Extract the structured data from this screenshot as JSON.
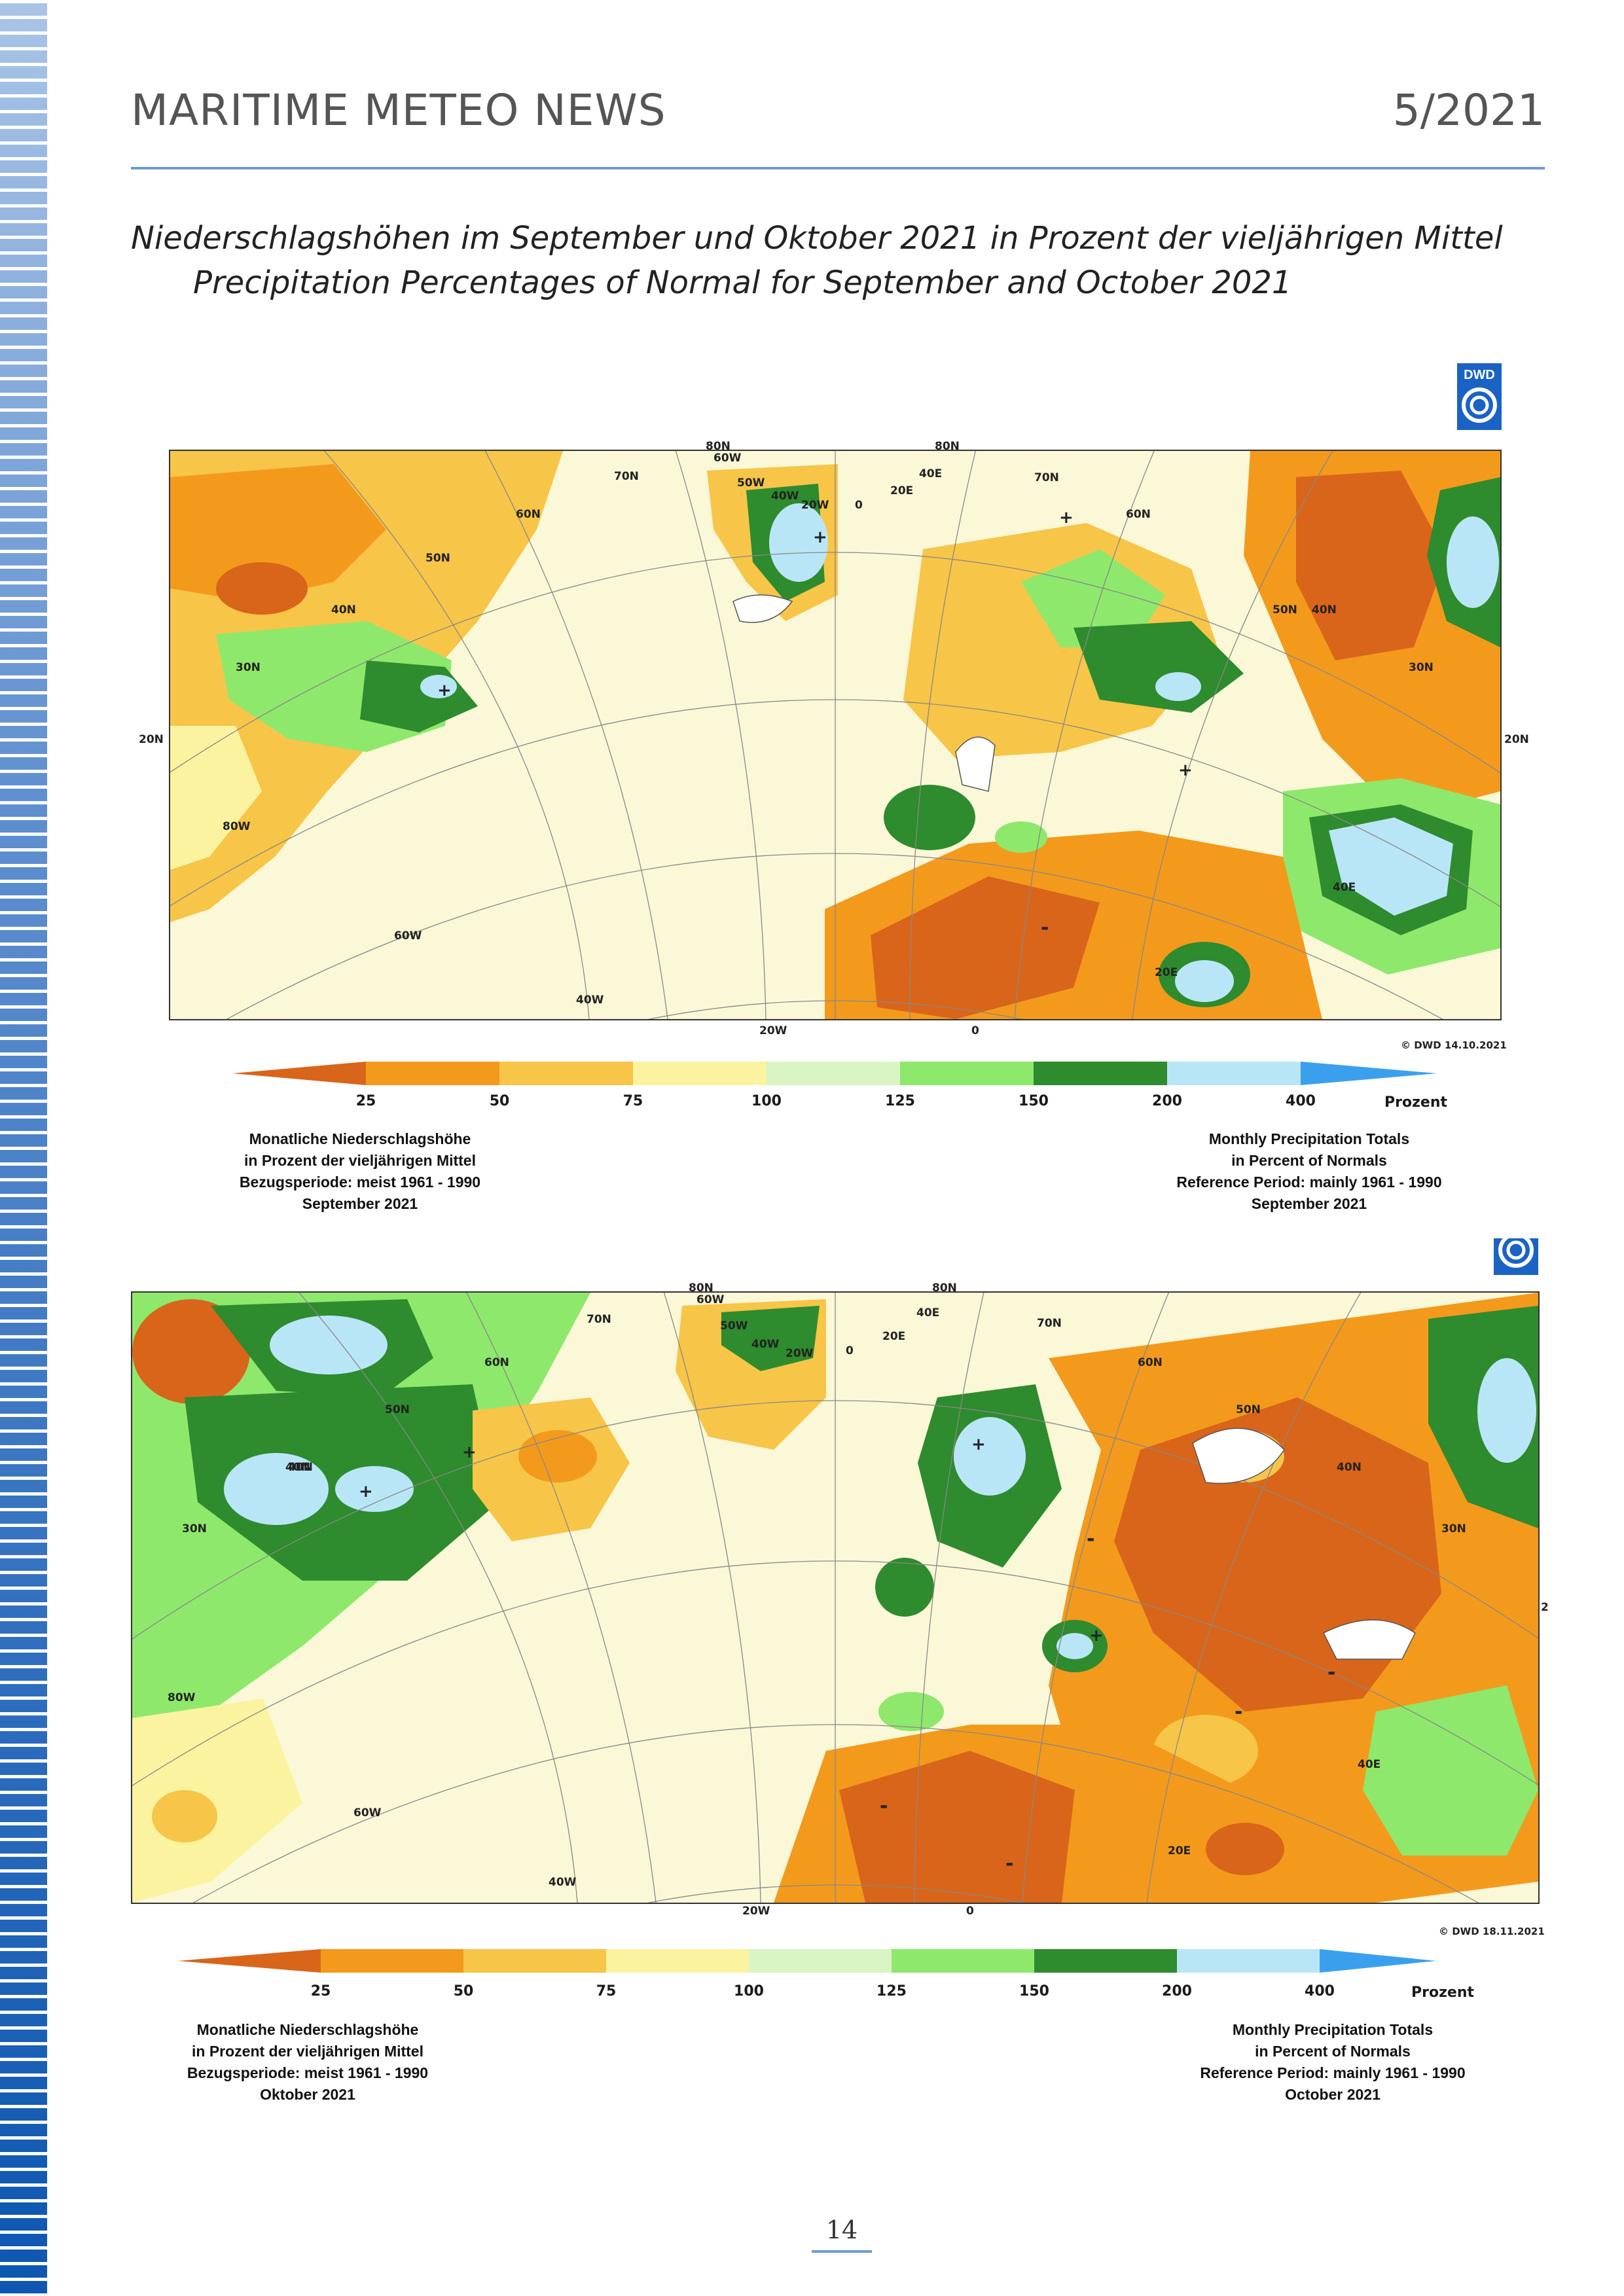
{
  "header": {
    "title": "MARITIME METEO NEWS",
    "issue": "5/2021"
  },
  "subtitle": {
    "line1": "Niederschlagshöhen im September und Oktober 2021 in Prozent der vieljährigen Mittel",
    "line2": "Precipitation Percentages of Normal for September and October 2021"
  },
  "logo": {
    "text": "DWD"
  },
  "maps": [
    {
      "month": "September 2021",
      "copyright": "© DWD 14.10.2021",
      "bottom_labels": [
        "20W",
        "0"
      ],
      "left_labels": [
        "20N",
        "80W",
        "60W",
        "40W"
      ],
      "right_labels": [
        "20N"
      ],
      "grid_labels": [
        "80N",
        "80N",
        "60W",
        "70N",
        "60N",
        "50N",
        "40N",
        "30N",
        "50W",
        "40W",
        "20W",
        "0",
        "20E",
        "40E",
        "70N",
        "60N",
        "50N",
        "40N",
        "30N",
        "40E",
        "20E"
      ],
      "signs": [
        "+",
        "+",
        "+",
        "+",
        "-"
      ]
    },
    {
      "month": "Oktober 2021",
      "copyright": "© DWD 18.11.2021",
      "bottom_labels": [
        "20W",
        "0"
      ],
      "left_labels": [
        "80W",
        "60W",
        "40W",
        "30N",
        "40N"
      ],
      "right_labels": [
        "2"
      ],
      "grid_labels": [
        "80N",
        "80N",
        "60W",
        "70N",
        "60N",
        "50N",
        "40N",
        "50W",
        "40W",
        "20W",
        "0",
        "20E",
        "40E",
        "70N",
        "60N",
        "50N",
        "40N",
        "30N",
        "40E",
        "20E"
      ],
      "signs": [
        "+",
        "+",
        "+",
        "+",
        "-",
        "-",
        "-",
        "-",
        "-"
      ]
    }
  ],
  "legend": {
    "ticks": [
      "25",
      "50",
      "75",
      "100",
      "125",
      "150",
      "200",
      "400"
    ],
    "unit": "Prozent",
    "colors": [
      "#d9651a",
      "#f39a1c",
      "#f7c548",
      "#fbf3a0",
      "#d9f5c4",
      "#8ee86c",
      "#2e8b2e",
      "#b9e6f7",
      "#3aa0ee"
    ]
  },
  "captions": {
    "de": {
      "line1": "Monatliche Niederschlagshöhe",
      "line2": "in Prozent der vieljährigen Mittel",
      "line3": "Bezugsperiode: meist 1961 - 1990"
    },
    "en": {
      "line1": "Monthly Precipitation Totals",
      "line2": "in Percent of Normals",
      "line3": "Reference Period: mainly 1961 - 1990"
    },
    "sep_de": "September 2021",
    "sep_en": "September 2021",
    "oct_de": "Oktober 2021",
    "oct_en": "October 2021"
  },
  "page_number": "14"
}
